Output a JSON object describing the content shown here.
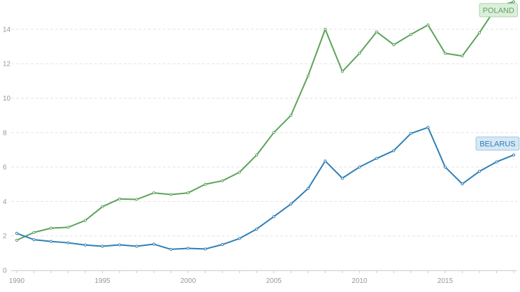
{
  "chart_data": {
    "type": "line",
    "x": [
      1990,
      1991,
      1992,
      1993,
      1994,
      1995,
      1996,
      1997,
      1998,
      1999,
      2000,
      2001,
      2002,
      2003,
      2004,
      2005,
      2006,
      2007,
      2008,
      2009,
      2010,
      2011,
      2012,
      2013,
      2014,
      2015,
      2016,
      2017,
      2018,
      2019
    ],
    "xticks": [
      "1990",
      "1995",
      "2000",
      "2005",
      "2010",
      "2015"
    ],
    "yticks": [
      "0",
      "2",
      "4",
      "6",
      "8",
      "10",
      "12",
      "14"
    ],
    "ylim": [
      0,
      15.6
    ],
    "grid": true,
    "series": [
      {
        "name": "POLAND",
        "color": "#5ba35a",
        "label_bg": "#dcefdc",
        "label_border": "#a9d3a8",
        "values": [
          1.75,
          2.2,
          2.45,
          2.5,
          2.9,
          3.7,
          4.15,
          4.12,
          4.5,
          4.4,
          4.5,
          5.0,
          5.2,
          5.7,
          6.7,
          8.0,
          9.0,
          11.3,
          14.0,
          11.55,
          12.6,
          13.85,
          13.1,
          13.7,
          14.25,
          12.6,
          12.45,
          13.8,
          15.3,
          15.6
        ]
      },
      {
        "name": "BELARUS",
        "color": "#2f7fb6",
        "label_bg": "#d6e8f4",
        "label_border": "#9cc6e4",
        "values": [
          2.15,
          1.78,
          1.68,
          1.6,
          1.47,
          1.4,
          1.48,
          1.4,
          1.52,
          1.22,
          1.28,
          1.24,
          1.5,
          1.85,
          2.4,
          3.12,
          3.85,
          4.75,
          6.35,
          5.35,
          6.0,
          6.5,
          6.95,
          7.95,
          8.3,
          6.0,
          5.02,
          5.75,
          6.3,
          6.7
        ]
      }
    ]
  }
}
